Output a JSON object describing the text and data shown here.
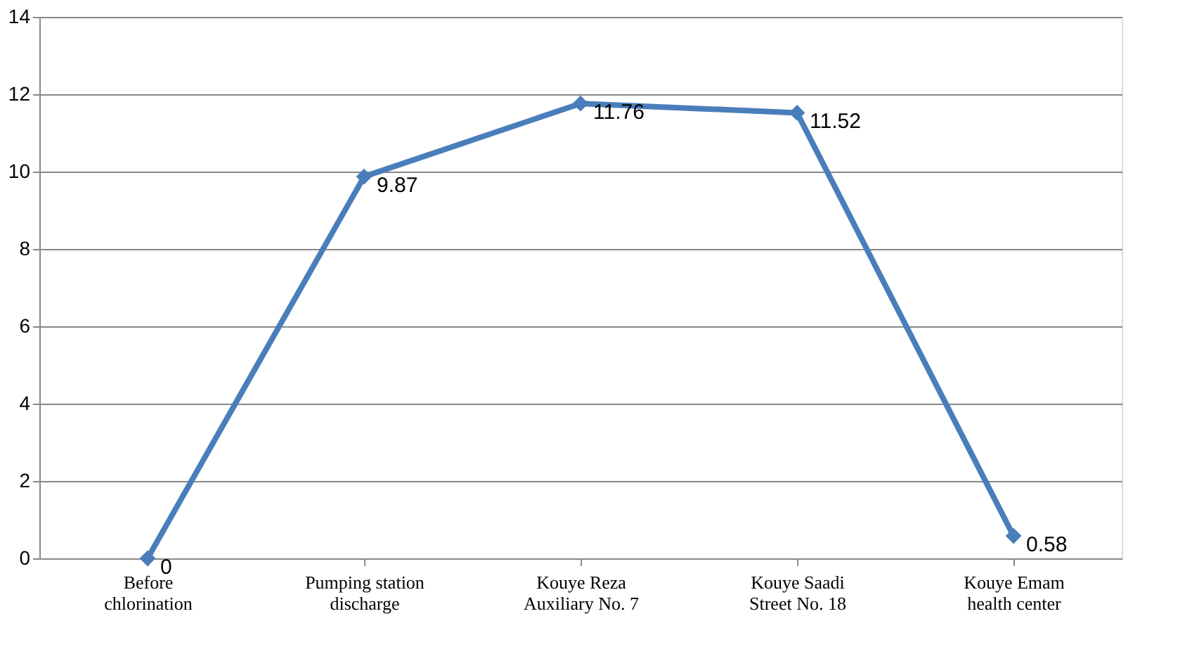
{
  "chart_data": {
    "type": "line",
    "categories": [
      "Before chlorination",
      "Pumping station discharge",
      "Kouye Reza Auxiliary No. 7",
      "Kouye Saadi Street No. 18",
      "Kouye Emam health center"
    ],
    "series": [
      {
        "color": "#4a7ebb",
        "values": [
          0,
          9.87,
          11.76,
          11.52,
          0.58
        ]
      }
    ],
    "ylim": [
      0,
      14
    ],
    "yticks": [
      0,
      2,
      4,
      6,
      8,
      10,
      12,
      14
    ],
    "grid": "y",
    "marker": "diamond",
    "line_style": "solid",
    "data_labels": true
  }
}
